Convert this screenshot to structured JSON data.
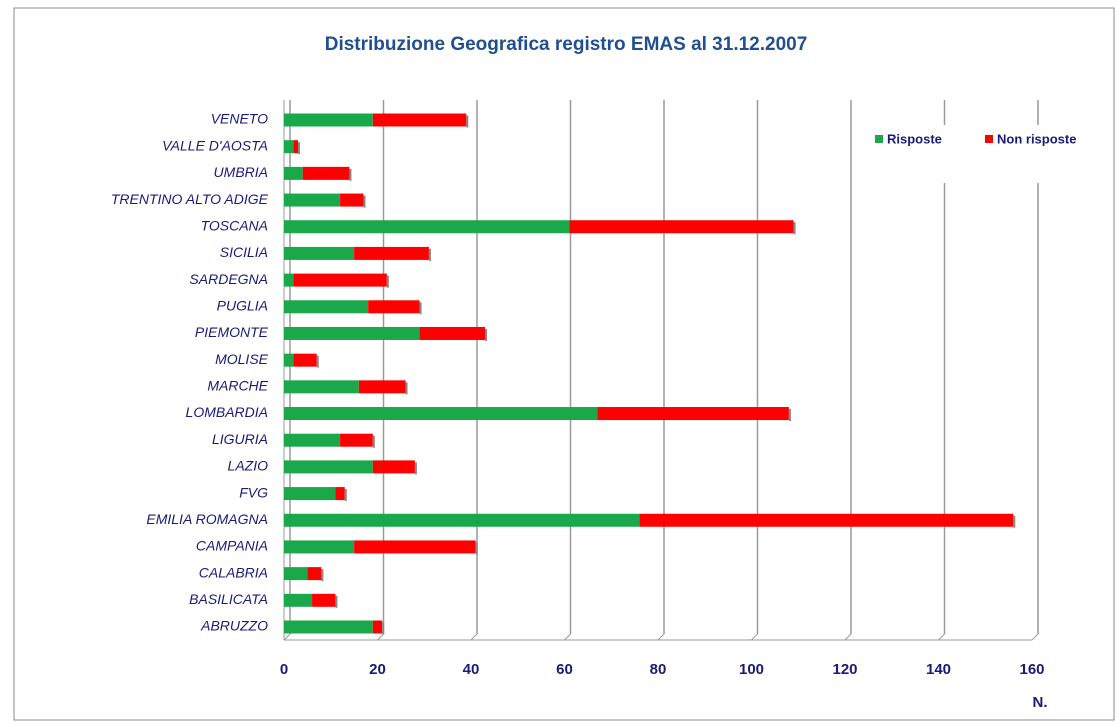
{
  "chart_data": {
    "type": "stacked_barh",
    "title": "Distribuzione Geografica registro EMAS al 31.12.2007",
    "x_label": "N.",
    "categories": [
      "VENETO",
      "VALLE D'AOSTA",
      "UMBRIA",
      "TRENTINO ALTO ADIGE",
      "TOSCANA",
      "SICILIA",
      "SARDEGNA",
      "PUGLIA",
      "PIEMONTE",
      "MOLISE",
      "MARCHE",
      "LOMBARDIA",
      "LIGURIA",
      "LAZIO",
      "FVG",
      "EMILIA ROMAGNA",
      "CAMPANIA",
      "CALABRIA",
      "BASILICATA",
      "ABRUZZO"
    ],
    "series": [
      {
        "name": "Risposte",
        "color": "#1aa84a",
        "values": [
          19,
          2,
          4,
          12,
          61,
          15,
          2,
          18,
          29,
          2,
          16,
          67,
          12,
          19,
          11,
          76,
          15,
          5,
          6,
          19
        ]
      },
      {
        "name": "Non risposte",
        "color": "#ff0000",
        "values": [
          20,
          1,
          10,
          5,
          48,
          16,
          20,
          11,
          14,
          5,
          10,
          41,
          7,
          9,
          2,
          80,
          26,
          3,
          5,
          2
        ]
      }
    ],
    "xlim": [
      0,
      160
    ],
    "xticks": [
      0,
      20,
      40,
      60,
      80,
      100,
      120,
      140,
      160
    ],
    "grid": true,
    "legend": "top-right"
  }
}
